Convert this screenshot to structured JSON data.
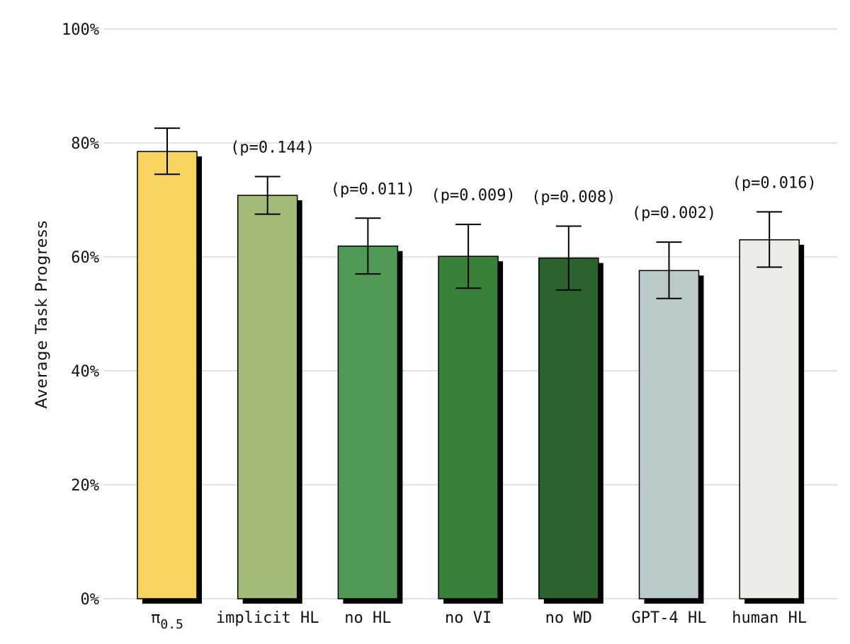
{
  "chart_data": {
    "type": "bar",
    "title": "",
    "xlabel": "",
    "ylabel": "Average Task Progress",
    "ylim": [
      0,
      100
    ],
    "yticks": [
      0,
      20,
      40,
      60,
      80,
      100
    ],
    "ytick_labels": [
      "0%",
      "20%",
      "40%",
      "60%",
      "80%",
      "100%"
    ],
    "grid": true,
    "categories": [
      {
        "label": "π",
        "sub": "0.5"
      },
      {
        "label": "implicit HL",
        "sub": ""
      },
      {
        "label": "no HL",
        "sub": ""
      },
      {
        "label": "no VI",
        "sub": ""
      },
      {
        "label": "no WD",
        "sub": ""
      },
      {
        "label": "GPT-4 HL",
        "sub": ""
      },
      {
        "label": "human HL",
        "sub": ""
      }
    ],
    "values": [
      78.5,
      70.8,
      61.9,
      60.1,
      59.8,
      57.6,
      63.0
    ],
    "error_low": [
      74.5,
      67.5,
      57.0,
      54.5,
      54.2,
      52.7,
      58.2
    ],
    "error_high": [
      82.6,
      74.1,
      66.8,
      65.7,
      65.4,
      62.6,
      67.9
    ],
    "annotations": [
      "",
      "(p=0.144)",
      "(p=0.011)",
      "(p=0.009)",
      "(p=0.008)",
      "(p=0.002)",
      "(p=0.016)"
    ],
    "colors": [
      "#f7d35f",
      "#a2bb79",
      "#519a55",
      "#398139",
      "#2b622e",
      "#bac9ca",
      "#eeece6"
    ],
    "shadow_color": "#000000",
    "grid_color": "#d9d9d9"
  }
}
